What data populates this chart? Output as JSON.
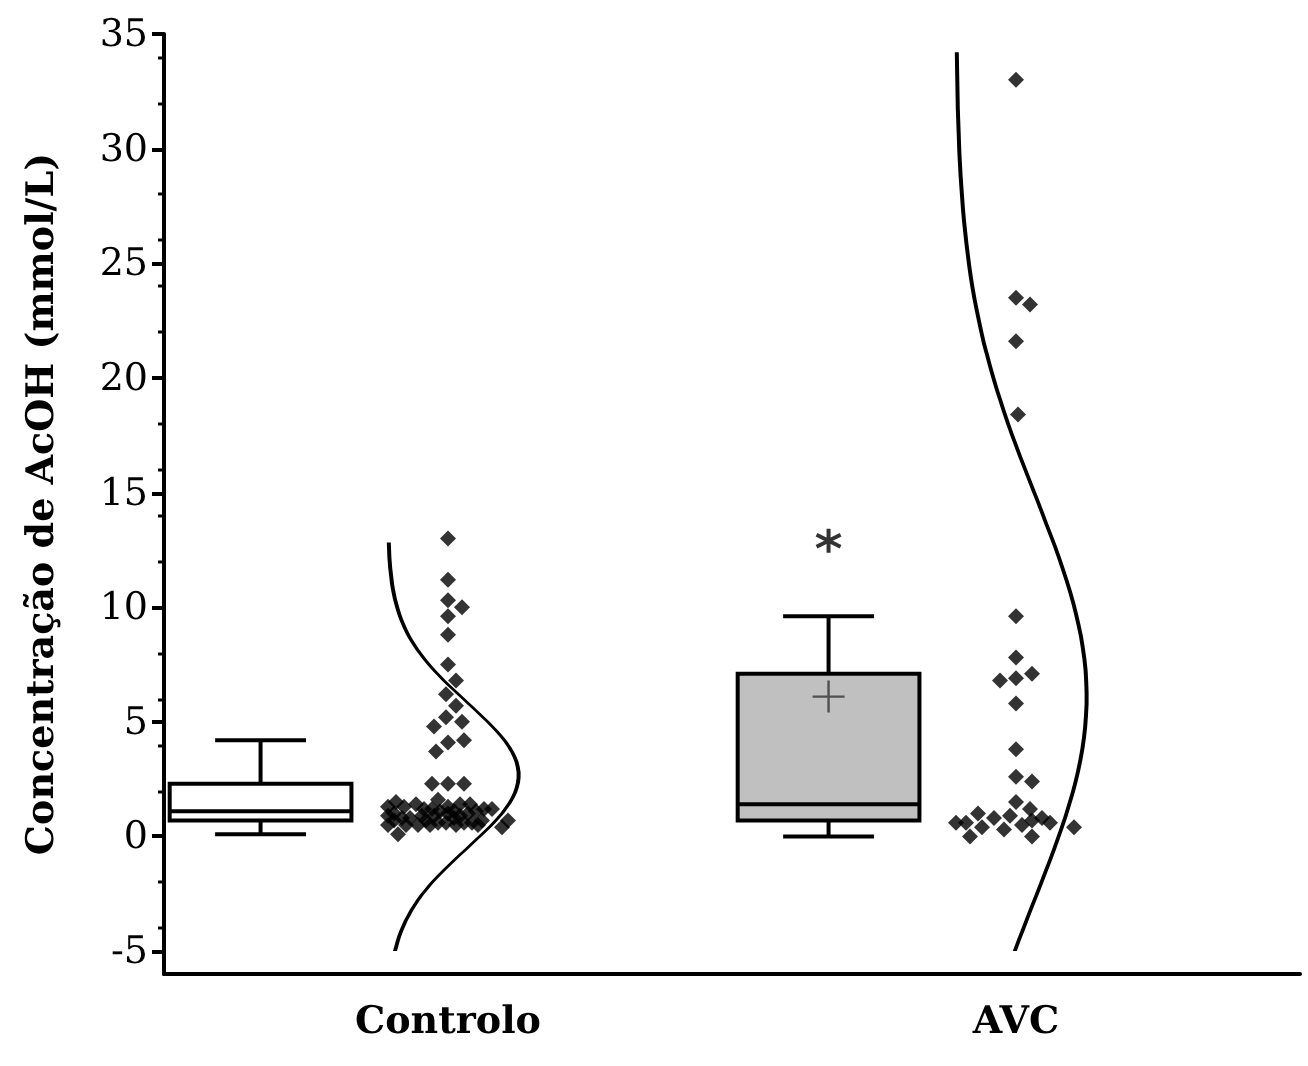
{
  "chart_data": {
    "type": "box",
    "ylabel": "Concentração de AcOH (mmol/L)",
    "categories": [
      "Controlo",
      "AVC"
    ],
    "ylim": [
      -6,
      35
    ],
    "yticks": [
      -5,
      0,
      5,
      10,
      15,
      20,
      25,
      30,
      35
    ],
    "series": [
      {
        "type": "box",
        "colors": [
          "#ffffff",
          "#c0c0c0"
        ],
        "boxes": [
          {
            "low": 0.1,
            "q1": 0.7,
            "median": 1.1,
            "q3": 2.3,
            "high": 4.2
          },
          {
            "low": 0,
            "q1": 0.7,
            "median": 1.4,
            "q3": 7.1,
            "high": 9.6,
            "mean": 6.1,
            "outliers": [
              12.9
            ]
          }
        ]
      },
      {
        "type": "scatter",
        "color": "#000000",
        "marker": "diamond",
        "x": [
          "Controlo",
          "Controlo",
          "Controlo",
          "Controlo",
          "Controlo",
          "Controlo",
          "Controlo",
          "Controlo",
          "Controlo",
          "Controlo",
          "Controlo",
          "Controlo",
          "Controlo",
          "Controlo",
          "Controlo",
          "Controlo",
          "Controlo",
          "Controlo",
          "Controlo",
          "Controlo",
          "Controlo",
          "Controlo",
          "Controlo",
          "Controlo",
          "Controlo",
          "Controlo",
          "Controlo",
          "Controlo",
          "Controlo",
          "Controlo",
          "Controlo",
          "Controlo",
          "Controlo",
          "Controlo",
          "Controlo",
          "Controlo",
          "Controlo",
          "Controlo",
          "Controlo",
          "Controlo",
          "Controlo",
          "Controlo",
          "Controlo",
          "Controlo",
          "Controlo",
          "Controlo",
          "Controlo",
          "Controlo",
          "Controlo",
          "Controlo",
          "Controlo",
          "Controlo",
          "Controlo",
          "Controlo",
          "Controlo",
          "Controlo",
          "Controlo",
          "Controlo",
          "Controlo",
          "Controlo",
          "AVC",
          "AVC",
          "AVC",
          "AVC",
          "AVC",
          "AVC",
          "AVC",
          "AVC",
          "AVC",
          "AVC",
          "AVC",
          "AVC",
          "AVC",
          "AVC",
          "AVC",
          "AVC",
          "AVC",
          "AVC",
          "AVC",
          "AVC",
          "AVC",
          "AVC",
          "AVC",
          "AVC",
          "AVC",
          "AVC",
          "AVC",
          "AVC",
          "AVC",
          "AVC"
        ],
        "values": [
          13.0,
          11.2,
          10.3,
          10.0,
          9.6,
          8.8,
          7.5,
          6.8,
          6.2,
          5.7,
          5.2,
          5.0,
          4.8,
          4.1,
          4.2,
          3.7,
          2.3,
          2.3,
          2.3,
          1.3,
          0.9,
          1.2,
          0.6,
          1.1,
          1.4,
          0.8,
          1.0,
          0.5,
          1.2,
          0.7,
          1.3,
          0.9,
          0.6,
          1.1,
          0.5,
          1.0,
          1.4,
          0.7,
          1.2,
          0.8,
          0.5,
          1.1,
          0.6,
          1.3,
          0.9,
          0.7,
          0.5,
          1.0,
          1.4,
          0.6,
          0.8,
          0.5,
          0.7,
          0.4,
          0.5,
          0.9,
          1.5,
          1.6,
          1.2,
          0.1,
          33.0,
          23.5,
          23.2,
          21.6,
          18.4,
          9.6,
          7.8,
          6.9,
          7.1,
          6.8,
          5.8,
          3.8,
          2.6,
          2.4,
          1.5,
          1.2,
          0.9,
          0.8,
          0.8,
          0.5,
          0.4,
          0.6,
          0.4,
          0.3,
          0.0,
          0.7,
          1.0,
          0.6,
          0.6,
          0.0
        ]
      }
    ]
  }
}
